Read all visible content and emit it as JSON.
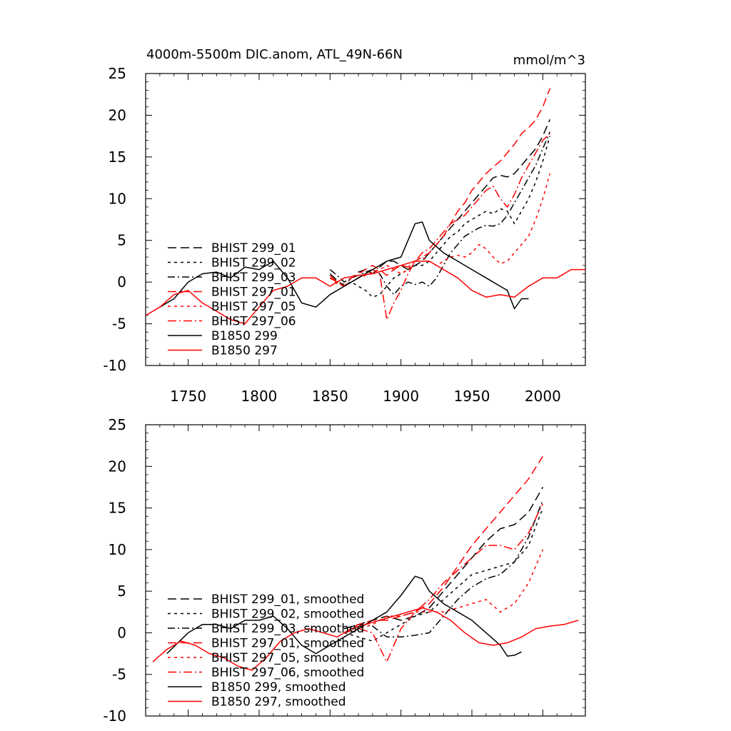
{
  "chart_data": [
    {
      "type": "line",
      "title_left": "4000m-5500m DIC.anom, ATL_49N-66N",
      "title_right": "mmol/m^3",
      "xlim": [
        1720,
        2030
      ],
      "ylim": [
        -10,
        25
      ],
      "x_ticks": [
        1750,
        1800,
        1850,
        1900,
        1950,
        2000
      ],
      "y_ticks": [
        -10,
        -5,
        0,
        5,
        10,
        15,
        20,
        25
      ],
      "x_tick_labels": [
        "1750",
        "1800",
        "1850",
        "1900",
        "1950",
        "2000"
      ],
      "y_tick_labels": [
        "-10",
        "-5",
        "0",
        "5",
        "10",
        "15",
        "20",
        "25"
      ],
      "legend_position": "lower-left",
      "series": [
        {
          "name": "BHIST 299_01",
          "color": "#000000",
          "dash": "12,6",
          "x": [
            1850,
            1855,
            1860,
            1865,
            1870,
            1875,
            1880,
            1885,
            1890,
            1895,
            1900,
            1905,
            1910,
            1915,
            1920,
            1925,
            1930,
            1935,
            1940,
            1945,
            1950,
            1955,
            1960,
            1965,
            1970,
            1975,
            1980,
            1985,
            1990,
            1995,
            2000,
            2005
          ],
          "y": [
            1.0,
            0.2,
            -0.5,
            0.5,
            1.2,
            1.5,
            1.0,
            1.8,
            2.5,
            2.5,
            2.0,
            1.5,
            2.0,
            2.5,
            3.5,
            4.5,
            5.5,
            6.5,
            7.5,
            8.5,
            9.5,
            10.5,
            11.5,
            12.5,
            12.8,
            12.6,
            13.0,
            14.0,
            15.0,
            16.0,
            17.5,
            19.5
          ]
        },
        {
          "name": "BHIST 299_02",
          "color": "#000000",
          "dash": "4,5",
          "x": [
            1850,
            1855,
            1860,
            1865,
            1870,
            1875,
            1880,
            1885,
            1890,
            1895,
            1900,
            1905,
            1910,
            1915,
            1920,
            1925,
            1930,
            1935,
            1940,
            1945,
            1950,
            1955,
            1960,
            1965,
            1970,
            1975,
            1980,
            1985,
            1990,
            1995,
            2000,
            2005
          ],
          "y": [
            0.5,
            0.0,
            -0.3,
            0.0,
            -0.5,
            -1.0,
            -1.8,
            -1.5,
            -0.5,
            0.5,
            1.0,
            1.5,
            2.0,
            2.0,
            2.5,
            3.5,
            4.5,
            5.5,
            6.0,
            7.0,
            7.5,
            8.0,
            8.5,
            8.2,
            8.8,
            8.5,
            7.0,
            8.5,
            10.0,
            12.0,
            14.5,
            17.5
          ]
        },
        {
          "name": "BHIST 299_03",
          "color": "#000000",
          "dash": "10,4,2,4",
          "x": [
            1850,
            1855,
            1860,
            1865,
            1870,
            1875,
            1880,
            1885,
            1890,
            1895,
            1900,
            1905,
            1910,
            1915,
            1920,
            1925,
            1930,
            1935,
            1940,
            1945,
            1950,
            1955,
            1960,
            1965,
            1970,
            1975,
            1980,
            1985,
            1990,
            1995,
            2000,
            2005
          ],
          "y": [
            1.5,
            0.8,
            0.0,
            0.5,
            0.8,
            1.2,
            1.5,
            1.0,
            -0.5,
            -1.5,
            -0.5,
            0.0,
            -0.3,
            0.0,
            -0.5,
            0.5,
            2.0,
            3.5,
            4.5,
            5.5,
            6.0,
            6.5,
            6.8,
            6.7,
            7.0,
            8.0,
            9.5,
            11.0,
            12.5,
            14.0,
            16.0,
            18.0
          ]
        },
        {
          "name": "BHIST 297_01",
          "color": "#ff0000",
          "dash": "12,6",
          "x": [
            1850,
            1855,
            1860,
            1865,
            1870,
            1875,
            1880,
            1885,
            1890,
            1895,
            1900,
            1905,
            1910,
            1915,
            1920,
            1925,
            1930,
            1935,
            1940,
            1945,
            1950,
            1955,
            1960,
            1965,
            1970,
            1975,
            1980,
            1985,
            1990,
            1995,
            2000,
            2005
          ],
          "y": [
            0.8,
            0.0,
            -0.5,
            0.5,
            1.0,
            1.5,
            2.0,
            1.5,
            0.8,
            1.5,
            2.0,
            1.8,
            2.5,
            3.0,
            3.5,
            4.5,
            5.5,
            7.0,
            8.5,
            9.5,
            11.0,
            12.0,
            13.0,
            13.8,
            14.5,
            15.5,
            16.5,
            17.8,
            18.5,
            19.5,
            21.0,
            23.2
          ]
        },
        {
          "name": "BHIST 297_05",
          "color": "#ff0000",
          "dash": "4,5",
          "x": [
            1850,
            1855,
            1860,
            1865,
            1870,
            1875,
            1880,
            1885,
            1890,
            1895,
            1900,
            1905,
            1910,
            1915,
            1920,
            1925,
            1930,
            1935,
            1940,
            1945,
            1950,
            1955,
            1960,
            1965,
            1970,
            1975,
            1980,
            1985,
            1990,
            1995,
            2000,
            2005
          ],
          "y": [
            0.5,
            -0.2,
            -0.5,
            0.0,
            0.5,
            0.8,
            1.2,
            1.5,
            2.0,
            1.5,
            1.0,
            1.5,
            2.5,
            3.0,
            2.5,
            2.0,
            2.5,
            3.0,
            3.2,
            3.0,
            3.5,
            4.5,
            4.0,
            3.0,
            2.2,
            2.5,
            3.5,
            4.5,
            5.5,
            7.5,
            10.0,
            13.0
          ]
        },
        {
          "name": "BHIST 297_06",
          "color": "#ff0000",
          "dash": "12,4,2,4",
          "x": [
            1850,
            1855,
            1860,
            1865,
            1870,
            1875,
            1880,
            1885,
            1890,
            1895,
            1900,
            1905,
            1910,
            1915,
            1920,
            1925,
            1930,
            1935,
            1940,
            1945,
            1950,
            1955,
            1960,
            1965,
            1970,
            1975,
            1980,
            1985,
            1990,
            1995,
            2000,
            2005
          ],
          "y": [
            0.5,
            0.0,
            -0.5,
            0.0,
            0.5,
            1.0,
            1.5,
            1.0,
            -4.5,
            -2.5,
            -1.0,
            1.0,
            2.5,
            3.5,
            4.0,
            5.0,
            6.0,
            7.0,
            7.5,
            8.0,
            9.0,
            10.0,
            11.0,
            11.5,
            10.0,
            9.0,
            10.5,
            12.5,
            14.0,
            15.5,
            17.0,
            17.8
          ]
        },
        {
          "name": "B1850 299",
          "color": "#000000",
          "dash": "",
          "x": [
            1730,
            1740,
            1750,
            1760,
            1770,
            1780,
            1790,
            1800,
            1810,
            1820,
            1830,
            1840,
            1850,
            1860,
            1870,
            1880,
            1890,
            1900,
            1905,
            1910,
            1915,
            1920,
            1930,
            1940,
            1950,
            1960,
            1970,
            1975,
            1980,
            1985,
            1990
          ],
          "y": [
            -3.0,
            -2.0,
            0.0,
            1.0,
            1.2,
            0.5,
            1.8,
            1.5,
            2.5,
            0.5,
            -2.5,
            -3.0,
            -1.5,
            -0.5,
            0.5,
            1.5,
            2.5,
            3.0,
            5.0,
            7.0,
            7.2,
            5.0,
            3.5,
            2.5,
            1.5,
            0.5,
            -0.5,
            -1.0,
            -3.2,
            -2.0,
            -2.0
          ]
        },
        {
          "name": "B1850 297",
          "color": "#ff0000",
          "dash": "",
          "x": [
            1720,
            1730,
            1740,
            1750,
            1760,
            1770,
            1780,
            1790,
            1800,
            1810,
            1820,
            1830,
            1840,
            1850,
            1860,
            1870,
            1880,
            1890,
            1900,
            1910,
            1920,
            1930,
            1940,
            1950,
            1960,
            1970,
            1980,
            1990,
            2000,
            2010,
            2020,
            2030
          ],
          "y": [
            -4.0,
            -3.0,
            -1.5,
            -1.0,
            -2.5,
            -3.5,
            -4.5,
            -5.0,
            -3.0,
            -1.0,
            -0.5,
            0.5,
            0.5,
            -0.5,
            0.5,
            0.8,
            1.0,
            1.5,
            2.0,
            2.5,
            2.5,
            1.5,
            0.5,
            -1.0,
            -1.8,
            -1.5,
            -1.8,
            -0.5,
            0.5,
            0.5,
            1.5,
            1.5
          ]
        }
      ]
    },
    {
      "type": "line",
      "xlim": [
        1720,
        2030
      ],
      "ylim": [
        -10,
        25
      ],
      "y_ticks": [
        -10,
        -5,
        0,
        5,
        10,
        15,
        20,
        25
      ],
      "y_tick_labels": [
        "-10",
        "-5",
        "0",
        "5",
        "10",
        "15",
        "20",
        "25"
      ],
      "x_ticks": [
        1750,
        1800,
        1850,
        1900,
        1950,
        2000
      ],
      "legend_position": "lower-left",
      "series": [
        {
          "name": "BHIST 299_01, smoothed",
          "color": "#000000",
          "dash": "12,6",
          "x": [
            1860,
            1870,
            1880,
            1890,
            1900,
            1910,
            1920,
            1930,
            1940,
            1950,
            1960,
            1970,
            1980,
            1990,
            2000
          ],
          "y": [
            0.5,
            1.0,
            1.5,
            2.0,
            1.5,
            2.0,
            3.0,
            5.0,
            7.0,
            9.0,
            11.0,
            12.5,
            13.0,
            14.5,
            17.5
          ]
        },
        {
          "name": "BHIST 299_02, smoothed",
          "color": "#000000",
          "dash": "4,5",
          "x": [
            1860,
            1870,
            1880,
            1890,
            1900,
            1910,
            1920,
            1930,
            1940,
            1950,
            1960,
            1970,
            1980,
            1990,
            2000
          ],
          "y": [
            0.0,
            -0.5,
            -1.0,
            0.0,
            1.0,
            2.0,
            2.5,
            4.0,
            5.5,
            7.0,
            7.5,
            8.0,
            8.5,
            10.5,
            15.0
          ]
        },
        {
          "name": "BHIST 299_03, smoothed",
          "color": "#000000",
          "dash": "10,4,2,4",
          "x": [
            1860,
            1870,
            1880,
            1890,
            1900,
            1910,
            1920,
            1930,
            1940,
            1950,
            1960,
            1970,
            1980,
            1990,
            2000
          ],
          "y": [
            0.5,
            1.0,
            0.8,
            -0.5,
            -0.5,
            -0.3,
            0.0,
            2.0,
            4.0,
            5.5,
            6.5,
            7.0,
            8.5,
            11.5,
            16.0
          ]
        },
        {
          "name": "BHIST 297_01, smoothed",
          "color": "#ff0000",
          "dash": "12,6",
          "x": [
            1860,
            1870,
            1880,
            1890,
            1900,
            1910,
            1920,
            1930,
            1940,
            1950,
            1960,
            1970,
            1980,
            1990,
            2000
          ],
          "y": [
            0.0,
            1.0,
            1.5,
            1.5,
            2.0,
            2.5,
            3.5,
            5.5,
            8.0,
            10.5,
            12.5,
            14.5,
            16.5,
            18.5,
            21.2
          ]
        },
        {
          "name": "BHIST 297_05, smoothed",
          "color": "#ff0000",
          "dash": "4,5",
          "x": [
            1860,
            1870,
            1880,
            1890,
            1900,
            1910,
            1920,
            1930,
            1940,
            1950,
            1960,
            1970,
            1980,
            1990,
            2000
          ],
          "y": [
            -0.5,
            0.5,
            1.0,
            2.0,
            2.0,
            2.5,
            2.5,
            2.5,
            3.0,
            3.5,
            4.0,
            2.5,
            3.5,
            6.0,
            10.0
          ]
        },
        {
          "name": "BHIST 297_06, smoothed",
          "color": "#ff0000",
          "dash": "12,4,2,4",
          "x": [
            1860,
            1870,
            1880,
            1890,
            1900,
            1910,
            1920,
            1930,
            1940,
            1950,
            1960,
            1970,
            1980,
            1990,
            2000
          ],
          "y": [
            0.0,
            0.5,
            0.0,
            -3.5,
            0.5,
            2.5,
            4.0,
            6.0,
            7.5,
            9.0,
            10.5,
            10.5,
            10.0,
            12.0,
            15.5
          ]
        },
        {
          "name": "B1850 299, smoothed",
          "color": "#000000",
          "dash": "",
          "x": [
            1735,
            1750,
            1760,
            1770,
            1780,
            1790,
            1800,
            1810,
            1820,
            1830,
            1840,
            1850,
            1860,
            1870,
            1880,
            1890,
            1900,
            1910,
            1915,
            1920,
            1930,
            1940,
            1950,
            1960,
            1970,
            1975,
            1980,
            1985
          ],
          "y": [
            -2.5,
            0.0,
            1.0,
            1.0,
            0.5,
            1.5,
            1.5,
            2.0,
            0.5,
            -1.5,
            -2.5,
            -1.5,
            -0.5,
            0.5,
            1.5,
            2.5,
            4.5,
            6.8,
            6.5,
            5.0,
            3.5,
            2.5,
            1.5,
            0.0,
            -1.5,
            -2.8,
            -2.7,
            -2.3
          ]
        },
        {
          "name": "B1850 297, smoothed",
          "color": "#ff0000",
          "dash": "",
          "x": [
            1725,
            1735,
            1745,
            1755,
            1765,
            1775,
            1785,
            1795,
            1805,
            1815,
            1825,
            1835,
            1845,
            1855,
            1865,
            1875,
            1885,
            1895,
            1905,
            1915,
            1925,
            1935,
            1945,
            1955,
            1965,
            1975,
            1985,
            1995,
            2005,
            2015,
            2025
          ],
          "y": [
            -3.5,
            -2.0,
            -1.0,
            -1.5,
            -2.5,
            -3.0,
            -4.0,
            -4.5,
            -3.0,
            -1.0,
            0.0,
            0.5,
            0.0,
            -0.5,
            0.5,
            1.0,
            1.5,
            2.0,
            2.5,
            3.0,
            2.5,
            1.5,
            0.0,
            -1.2,
            -1.5,
            -1.2,
            -0.5,
            0.5,
            0.8,
            1.0,
            1.5
          ]
        }
      ]
    }
  ]
}
